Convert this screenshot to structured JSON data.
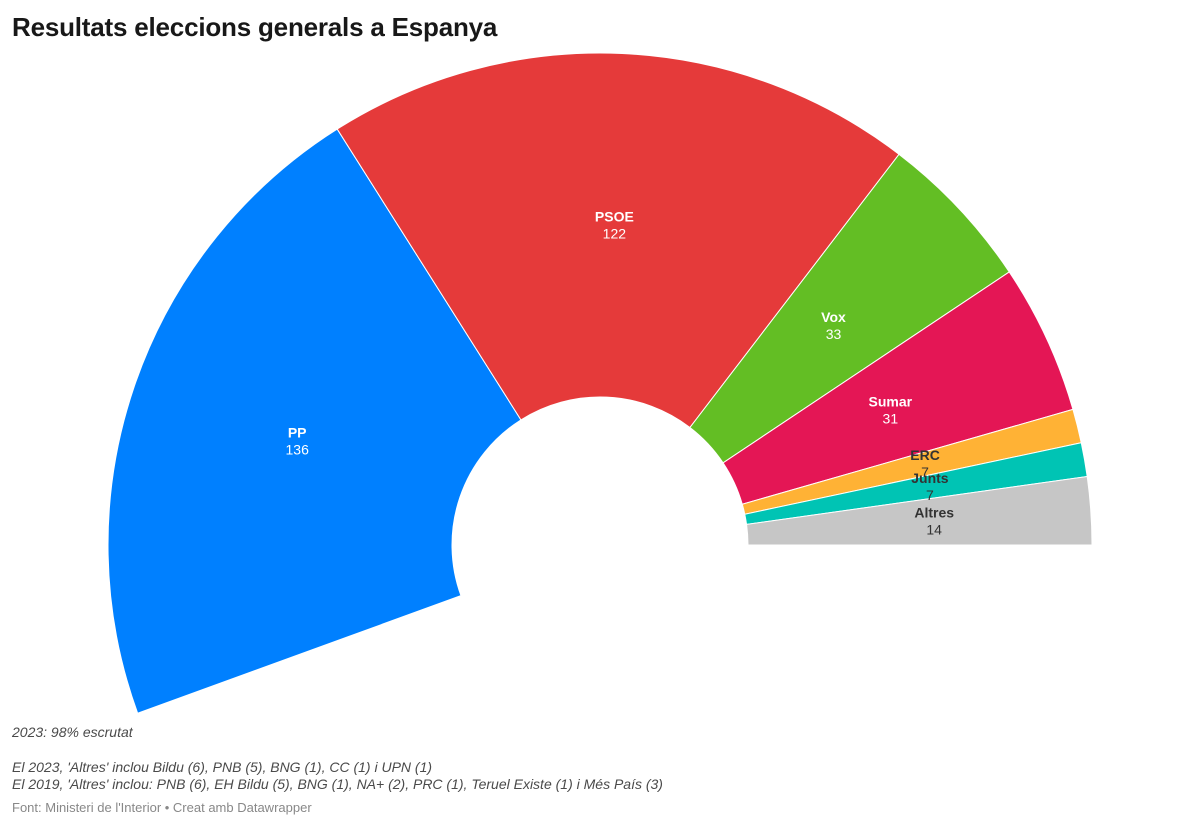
{
  "title": "Resultats eleccions generals a Espanya",
  "chart_data": {
    "type": "pie",
    "shape": "semicircle-parliament",
    "total_seats": 350,
    "series": [
      {
        "name": "PP",
        "value": 136,
        "color": "#0080ff",
        "label_color": "#ffffff"
      },
      {
        "name": "PSOE",
        "value": 122,
        "color": "#e53a3a",
        "label_color": "#ffffff"
      },
      {
        "name": "Vox",
        "value": 33,
        "color": "#63be24",
        "label_color": "#ffffff"
      },
      {
        "name": "Sumar",
        "value": 31,
        "color": "#e41655",
        "label_color": "#ffffff"
      },
      {
        "name": "ERC",
        "value": 7,
        "color": "#ffb235",
        "label_color": "#333333"
      },
      {
        "name": "Junts",
        "value": 7,
        "color": "#00c4b4",
        "label_color": "#333333"
      },
      {
        "name": "Altres",
        "value": 14,
        "color": "#c6c6c6",
        "label_color": "#333333"
      }
    ]
  },
  "notes": {
    "scrutiny": "2023: 98% escrutat",
    "others_2023": "El 2023, 'Altres' inclou Bildu (6), PNB (5), BNG (1), CC (1) i UPN (1)",
    "others_2019": "El 2019, 'Altres' inclou: PNB (6), EH Bildu (5), BNG (1), NA+ (2), PRC (1), Teruel Existe (1) i Més País (3)"
  },
  "source": "Font: Ministeri de l'Interior • Creat amb Datawrapper"
}
